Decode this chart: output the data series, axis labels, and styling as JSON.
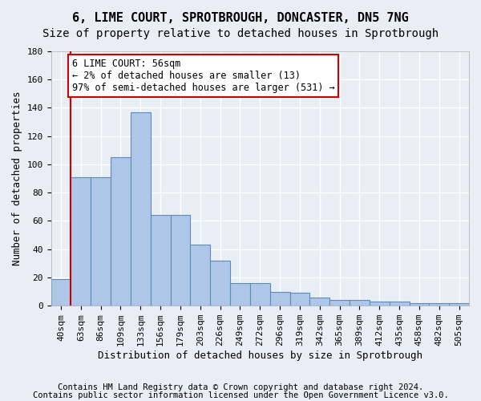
{
  "title_line1": "6, LIME COURT, SPROTBROUGH, DONCASTER, DN5 7NG",
  "title_line2": "Size of property relative to detached houses in Sprotbrough",
  "xlabel": "Distribution of detached houses by size in Sprotbrough",
  "ylabel": "Number of detached properties",
  "footer_line1": "Contains HM Land Registry data © Crown copyright and database right 2024.",
  "footer_line2": "Contains public sector information licensed under the Open Government Licence v3.0.",
  "bar_labels": [
    "40sqm",
    "63sqm",
    "86sqm",
    "109sqm",
    "133sqm",
    "156sqm",
    "179sqm",
    "203sqm",
    "226sqm",
    "249sqm",
    "272sqm",
    "296sqm",
    "319sqm",
    "342sqm",
    "365sqm",
    "389sqm",
    "412sqm",
    "435sqm",
    "458sqm",
    "482sqm",
    "505sqm"
  ],
  "bar_values": [
    19,
    91,
    91,
    105,
    137,
    64,
    64,
    43,
    32,
    16,
    16,
    10,
    9,
    6,
    4,
    4,
    3,
    3,
    2,
    2,
    2
  ],
  "bar_color": "#aec6e8",
  "bar_edge_color": "#5b8db8",
  "background_color": "#e8eef4",
  "grid_color": "#ffffff",
  "annotation_box_text": "6 LIME COURT: 56sqm\n← 2% of detached houses are smaller (13)\n97% of semi-detached houses are larger (531) →",
  "annotation_box_color": "#ffffff",
  "annotation_box_edge_color": "#cc0000",
  "vline_x": 0.5,
  "vline_color": "#cc0000",
  "ylim": [
    0,
    180
  ],
  "yticks": [
    0,
    20,
    40,
    60,
    80,
    100,
    120,
    140,
    160,
    180
  ],
  "title_fontsize": 11,
  "subtitle_fontsize": 10,
  "axis_label_fontsize": 9,
  "tick_fontsize": 8,
  "annotation_fontsize": 8.5,
  "footer_fontsize": 7.5
}
